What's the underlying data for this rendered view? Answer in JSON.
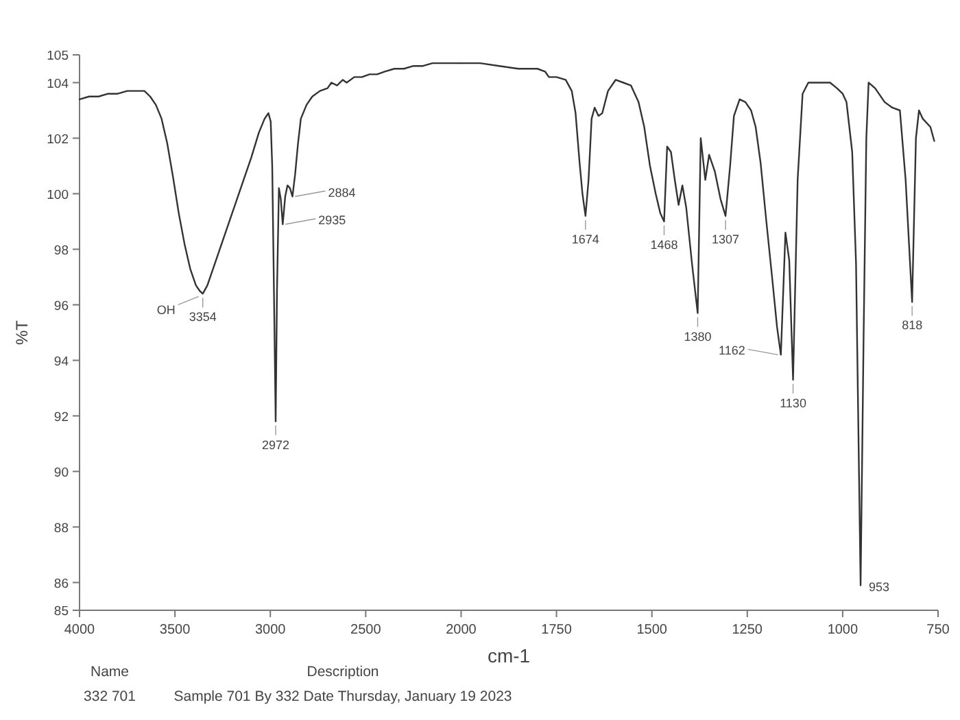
{
  "chart_data": [
    {
      "type": "line",
      "xlabel": "cm-1",
      "ylabel": "%T",
      "color": "#333333",
      "x": [
        4000,
        3950,
        3900,
        3850,
        3800,
        3750,
        3700,
        3660,
        3630,
        3600,
        3570,
        3540,
        3510,
        3480,
        3450,
        3420,
        3390,
        3370,
        3354,
        3330,
        3300,
        3250,
        3200,
        3150,
        3100,
        3060,
        3030,
        3010,
        2998,
        2990,
        2982,
        2972,
        2965,
        2955,
        2945,
        2935,
        2922,
        2910,
        2897,
        2884,
        2870,
        2855,
        2840,
        2810,
        2780,
        2740,
        2700,
        2680,
        2650,
        2620,
        2600,
        2560,
        2520,
        2480,
        2440,
        2400,
        2350,
        2300,
        2250,
        2200,
        2150,
        2100,
        2050,
        2000
      ],
      "values": [
        103.4,
        103.5,
        103.5,
        103.6,
        103.6,
        103.7,
        103.7,
        103.7,
        103.5,
        103.2,
        102.7,
        101.8,
        100.6,
        99.3,
        98.2,
        97.3,
        96.7,
        96.5,
        96.4,
        96.7,
        97.3,
        98.3,
        99.3,
        100.3,
        101.3,
        102.2,
        102.7,
        102.9,
        102.6,
        101.0,
        97.0,
        91.8,
        96.5,
        100.2,
        99.8,
        98.9,
        99.9,
        100.3,
        100.2,
        99.9,
        100.7,
        101.8,
        102.7,
        103.2,
        103.5,
        103.7,
        103.8,
        104.0,
        103.9,
        104.1,
        104.0,
        104.2,
        104.2,
        104.3,
        104.3,
        104.4,
        104.5,
        104.5,
        104.6,
        104.6,
        104.7,
        104.7,
        104.7,
        104.7
      ],
      "xlim": [
        4000,
        2000
      ],
      "xticks": [
        4000,
        3500,
        3000,
        2500,
        2000
      ],
      "ylim": [
        85,
        105
      ],
      "yticks": [
        85,
        86,
        88,
        90,
        92,
        94,
        96,
        98,
        100,
        102,
        104,
        105
      ],
      "annotations": [
        {
          "text": "3354",
          "x": 3354,
          "y": 96.4
        },
        {
          "text": "OH",
          "x": 3354,
          "y": 96.4
        },
        {
          "text": "2972",
          "x": 2972,
          "y": 91.8
        },
        {
          "text": "2935",
          "x": 2935,
          "y": 98.9
        },
        {
          "text": "2884",
          "x": 2884,
          "y": 99.9
        },
        "Name",
        "Description",
        "332 701",
        "Sample 701 By 332 Date Thursday, January 19 2023"
      ]
    },
    {
      "type": "line",
      "color": "#333333",
      "x": [
        2000,
        1950,
        1900,
        1850,
        1800,
        1780,
        1770,
        1750,
        1726,
        1710,
        1700,
        1690,
        1682,
        1674,
        1666,
        1658,
        1650,
        1640,
        1630,
        1615,
        1595,
        1575,
        1555,
        1535,
        1520,
        1505,
        1490,
        1478,
        1468,
        1460,
        1450,
        1440,
        1430,
        1420,
        1410,
        1395,
        1380,
        1372,
        1360,
        1350,
        1335,
        1320,
        1307,
        1295,
        1285,
        1270,
        1255,
        1240,
        1228,
        1215,
        1200,
        1185,
        1172,
        1162,
        1150,
        1140,
        1130,
        1118,
        1105,
        1090,
        1070,
        1050,
        1033,
        1015,
        1000,
        990,
        975,
        965,
        953,
        945,
        938,
        932,
        915,
        890,
        870,
        850,
        835,
        818,
        808,
        800,
        790,
        770,
        760
      ],
      "values": [
        104.7,
        104.7,
        104.6,
        104.5,
        104.5,
        104.4,
        104.2,
        104.2,
        104.1,
        103.7,
        102.9,
        101.2,
        100.0,
        99.2,
        100.5,
        102.7,
        103.1,
        102.8,
        102.9,
        103.7,
        104.1,
        104.0,
        103.9,
        103.3,
        102.4,
        101.0,
        100.0,
        99.3,
        99.0,
        101.7,
        101.5,
        100.5,
        99.6,
        100.3,
        99.5,
        97.5,
        95.7,
        102.0,
        100.5,
        101.4,
        100.8,
        99.8,
        99.2,
        101.0,
        102.8,
        103.4,
        103.3,
        103.0,
        102.4,
        101.1,
        99.0,
        97.0,
        95.2,
        94.2,
        98.6,
        97.6,
        93.3,
        100.5,
        103.6,
        104.0,
        104.0,
        104.0,
        104.0,
        103.8,
        103.6,
        103.3,
        101.5,
        97.5,
        85.9,
        95.0,
        102.0,
        104.0,
        103.8,
        103.3,
        103.1,
        103.0,
        100.5,
        96.1,
        102.0,
        103.0,
        102.7,
        102.4,
        101.9
      ],
      "xlim": [
        2000,
        750
      ],
      "xticks": [
        1750,
        1500,
        1250,
        1000,
        750
      ],
      "ylim": [
        85,
        105
      ],
      "tick_labels": "x",
      "annotations": [
        {
          "text": "1674",
          "x": 1674,
          "y": 99.2
        },
        {
          "text": "1468",
          "x": 1468,
          "y": 99.0
        },
        {
          "text": "1380",
          "x": 1380,
          "y": 95.7
        },
        {
          "text": "1307",
          "x": 1307,
          "y": 99.2
        },
        {
          "text": "1162",
          "x": 1162,
          "y": 94.2
        },
        {
          "text": "1130",
          "x": 1130,
          "y": 93.3
        },
        {
          "text": "953",
          "x": 953,
          "y": 85.9
        },
        {
          "text": "818",
          "x": 818,
          "y": 96.1
        }
      ]
    }
  ]
}
